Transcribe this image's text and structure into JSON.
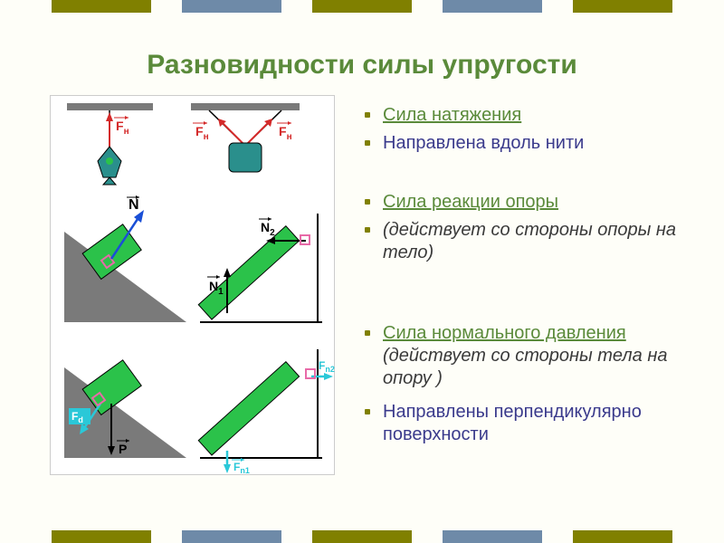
{
  "colors": {
    "bg": "#fefef8",
    "olive": "#808000",
    "steel": "#6e8aa8",
    "title": "#5a8a3a",
    "heading": "#5a8a3a",
    "body_blue": "#3a3a8c",
    "body_italic": "#3a3a3a",
    "diag_gray": "#7a7a7a",
    "diag_green": "#2bc24a",
    "diag_teal": "#2a8f8c",
    "diag_red": "#d42a2a",
    "diag_blue": "#1a4fd6",
    "diag_cyan": "#2ac8d8",
    "diag_pink": "#e86aa8"
  },
  "title": "Разновидности силы упругости",
  "sections": [
    {
      "heading": "Сила натяжения",
      "lines": [
        {
          "text": "Направлена вдоль нити",
          "color": "body_blue",
          "italic": false
        }
      ],
      "gap": 34
    },
    {
      "heading": "Сила реакции опоры",
      "lines": [
        {
          "text": "(действует со стороны опоры на тело)",
          "color": "body_italic",
          "italic": true
        }
      ],
      "gap": 58
    },
    {
      "heading": "Сила нормального давления",
      "inline": {
        "text": " (действует со стороны тела на опору )",
        "color": "body_italic",
        "italic": true
      },
      "lines": [],
      "gap": 6
    },
    {
      "heading": null,
      "lines": [
        {
          "text": "Направлены перпендикулярно поверхности",
          "color": "body_blue",
          "italic": false
        }
      ],
      "gap": 0
    }
  ],
  "labels": {
    "Fn": "F",
    "Fn_sub": "н",
    "N": "N",
    "N1_sub": "1",
    "N2_sub": "2",
    "Fd": "F",
    "Fd_sub": "d",
    "Fn1": "F",
    "Fn1_sub": "n1",
    "Fn2": "F",
    "Fn2_sub": "n2",
    "P": "P"
  },
  "bar_pattern": [
    "olive",
    "steel",
    "olive",
    "steel",
    "olive"
  ]
}
